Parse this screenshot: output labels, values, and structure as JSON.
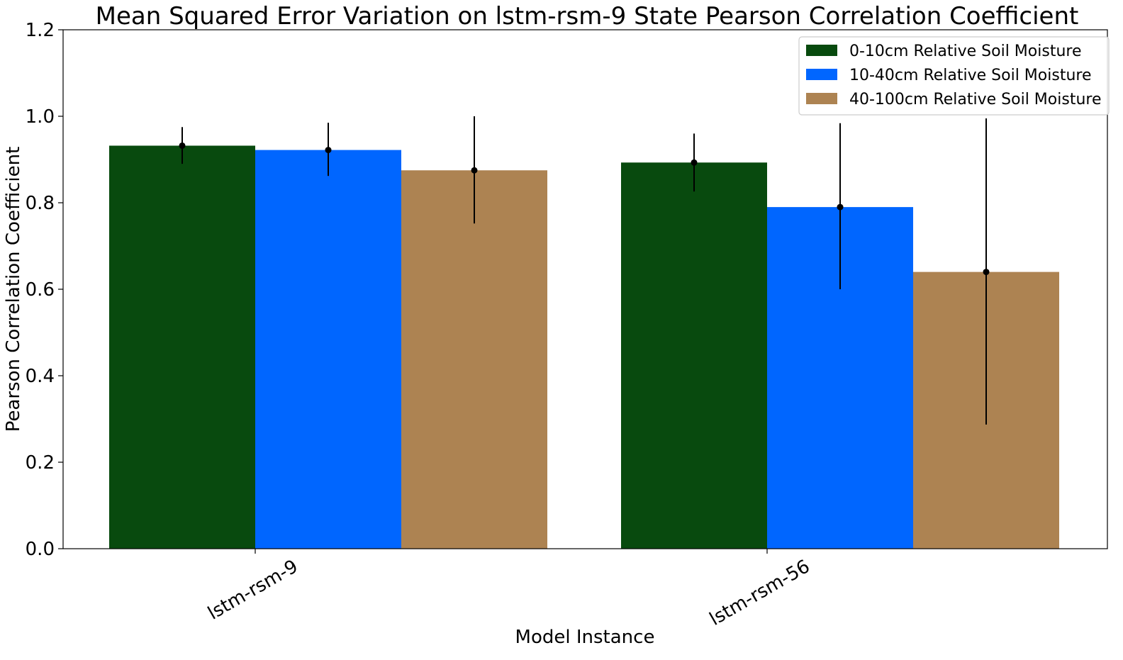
{
  "chart_data": {
    "type": "bar",
    "title": "Mean Squared Error Variation on lstm-rsm-9 State Pearson Correlation Coefficient",
    "xlabel": "Model Instance",
    "ylabel": "Pearson Correlation Coefficient",
    "ylim": [
      0.0,
      1.2
    ],
    "yticks": [
      "0.0",
      "0.2",
      "0.4",
      "0.6",
      "0.8",
      "1.0",
      "1.2"
    ],
    "categories": [
      "lstm-rsm-9",
      "lstm-rsm-56"
    ],
    "legend_position": "top-right",
    "series": [
      {
        "name": "0-10cm Relative Soil Moisture",
        "color": "#084A0E",
        "values": [
          0.932,
          0.893
        ],
        "error_low": [
          0.89,
          0.826
        ],
        "error_high": [
          0.975,
          0.96
        ]
      },
      {
        "name": "10-40cm Relative Soil Moisture",
        "color": "#0066FF",
        "values": [
          0.922,
          0.79
        ],
        "error_low": [
          0.862,
          0.6
        ],
        "error_high": [
          0.985,
          0.984
        ]
      },
      {
        "name": "40-100cm Relative Soil Moisture",
        "color": "#AD8352",
        "values": [
          0.875,
          0.64
        ],
        "error_low": [
          0.752,
          0.287
        ],
        "error_high": [
          1.0,
          0.995
        ]
      }
    ]
  }
}
